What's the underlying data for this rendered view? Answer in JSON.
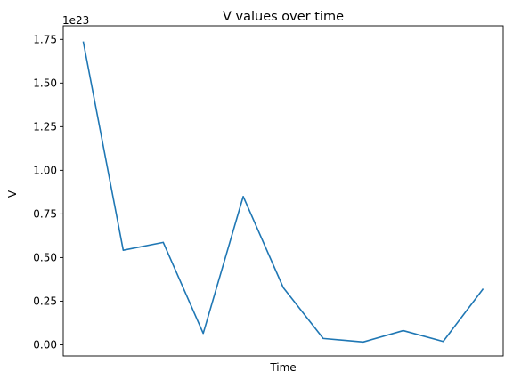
{
  "chart_data": {
    "type": "line",
    "title": "V values over time",
    "xlabel": "Time",
    "ylabel": "V",
    "y_offset_label": "1e23",
    "y_scale_factor": 1e+23,
    "x": [
      0,
      1,
      2,
      3,
      4,
      5,
      6,
      7,
      8,
      9,
      10
    ],
    "series": [
      {
        "color": "#1f77b4",
        "values": [
          1.738,
          0.542,
          0.587,
          0.065,
          0.85,
          0.328,
          0.036,
          0.016,
          0.081,
          0.019,
          0.321
        ]
      }
    ],
    "ylim": [
      -0.064,
      1.828
    ],
    "xlim": [
      -0.5,
      10.5
    ],
    "yticks": [
      0.0,
      0.25,
      0.5,
      0.75,
      1.0,
      1.25,
      1.5,
      1.75
    ],
    "ytick_labels": [
      "0.00",
      "0.25",
      "0.50",
      "0.75",
      "1.00",
      "1.25",
      "1.50",
      "1.75"
    ],
    "grid": false,
    "legend": false
  }
}
